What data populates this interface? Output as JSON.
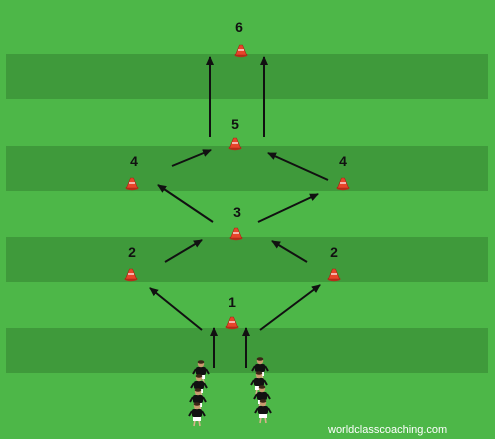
{
  "field": {
    "grass_color": "#4db748",
    "stripe_color": "#3f9a3b"
  },
  "cones": [
    {
      "label": "1",
      "color": "#e8442a"
    },
    {
      "label": "2",
      "color": "#e8442a"
    },
    {
      "label": "2",
      "color": "#e8442a"
    },
    {
      "label": "3",
      "color": "#e8442a"
    },
    {
      "label": "4",
      "color": "#e8442a"
    },
    {
      "label": "4",
      "color": "#e8442a"
    },
    {
      "label": "5",
      "color": "#e8442a"
    },
    {
      "label": "6",
      "color": "#e8442a"
    }
  ],
  "players": {
    "shirt_color": "#111111",
    "shorts_color": "#ffffff",
    "left_column_count": 4,
    "right_column_count": 4
  },
  "watermark": {
    "text": "worldclasscoaching.com"
  }
}
